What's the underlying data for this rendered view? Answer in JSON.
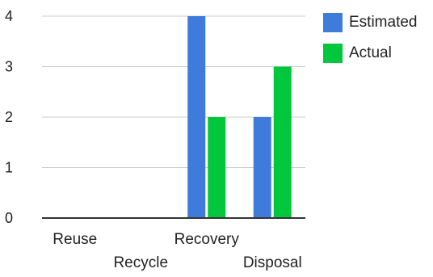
{
  "chart_data": {
    "type": "bar",
    "title": "",
    "xlabel": "",
    "ylabel": "",
    "categories": [
      "Reuse",
      "Recycle",
      "Recovery",
      "Disposal"
    ],
    "series": [
      {
        "name": "Estimated",
        "values": [
          0,
          0,
          4,
          2
        ],
        "color": "#3e7bdb"
      },
      {
        "name": "Actual",
        "values": [
          0,
          0,
          2,
          3
        ],
        "color": "#00c73c"
      }
    ],
    "ylim": [
      0,
      4
    ],
    "yticks": [
      "0",
      "1",
      "2",
      "3",
      "4"
    ],
    "grid": true,
    "legend_position": "top-right"
  }
}
